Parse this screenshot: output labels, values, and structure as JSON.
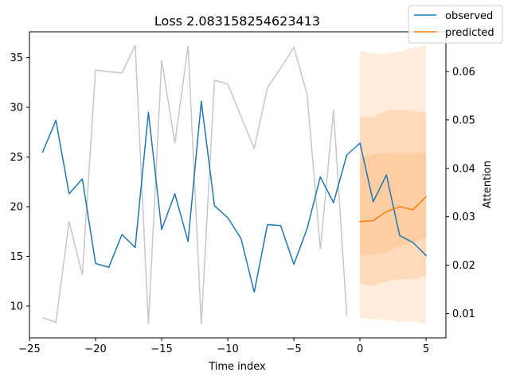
{
  "chart_data": {
    "type": "line",
    "title": "Loss 2.083158254623413",
    "xlabel": "Time index",
    "ylabel": "",
    "y2label": "Attention",
    "xlim": [
      -25,
      6.5
    ],
    "ylim": [
      6.8,
      37.6
    ],
    "y2lim": [
      0.005,
      0.0682
    ],
    "xticks": [
      -25,
      -20,
      -15,
      -10,
      -5,
      0,
      5
    ],
    "yticks": [
      10,
      15,
      20,
      25,
      30,
      35
    ],
    "y2ticks": [
      0.01,
      0.02,
      0.03,
      0.04,
      0.05,
      0.06
    ],
    "legend": {
      "placement": "top-right",
      "entries": [
        "observed",
        "predicted"
      ]
    },
    "colors": {
      "observed": "#1f77b4",
      "predicted": "#ff7f0e",
      "attention": "#c7c7c7",
      "band": "#ff7f0e"
    },
    "attention": {
      "x": [
        -24,
        -23,
        -22,
        -21,
        -20,
        -19,
        -18,
        -17,
        -16,
        -15,
        -14,
        -13,
        -12,
        -11,
        -10,
        -9,
        -8,
        -7,
        -6,
        -5,
        -4,
        -3,
        -2,
        -1
      ],
      "values": [
        0.0092,
        0.0082,
        0.029,
        0.018,
        0.0603,
        0.06,
        0.0597,
        0.0654,
        0.0078,
        0.0623,
        0.0452,
        0.0653,
        0.0078,
        0.0582,
        0.0574,
        0.0507,
        0.0441,
        0.0567,
        0.0607,
        0.065,
        0.0553,
        0.0233,
        0.0521,
        0.0095
      ]
    },
    "series": [
      {
        "name": "observed",
        "x": [
          -24,
          -23,
          -22,
          -21,
          -20,
          -19,
          -18,
          -17,
          -16,
          -15,
          -14,
          -13,
          -12,
          -11,
          -10,
          -9,
          -8,
          -7,
          -6,
          -5,
          -4,
          -3,
          -2,
          -1,
          0,
          1,
          2,
          3,
          4,
          5
        ],
        "values": [
          25.5,
          28.7,
          21.3,
          22.8,
          14.3,
          13.9,
          17.2,
          15.9,
          29.5,
          17.7,
          21.3,
          16.5,
          30.6,
          20.1,
          18.9,
          16.8,
          11.4,
          18.2,
          18.1,
          14.2,
          17.8,
          23.0,
          20.4,
          25.2,
          26.4,
          20.5,
          23.2,
          17.1,
          16.4,
          15.1
        ]
      },
      {
        "name": "predicted",
        "x": [
          0,
          1,
          2,
          3,
          4,
          5
        ],
        "values": [
          18.5,
          18.6,
          19.5,
          20.0,
          19.7,
          21.0
        ]
      }
    ],
    "quantile_bands": [
      {
        "x": [
          0,
          1,
          2,
          3,
          4,
          5
        ],
        "lower": [
          8.8,
          8.7,
          8.6,
          8.4,
          8.5,
          8.2
        ],
        "upper": [
          35.7,
          35.4,
          35.4,
          35.6,
          36.0,
          36.2
        ]
      },
      {
        "x": [
          0,
          1,
          2,
          3,
          4,
          5
        ],
        "lower": [
          12.3,
          12.0,
          12.5,
          12.7,
          12.7,
          13.0
        ],
        "upper": [
          29.0,
          29.0,
          29.7,
          29.8,
          29.6,
          29.5
        ]
      },
      {
        "x": [
          0,
          1,
          2,
          3,
          4,
          5
        ],
        "lower": [
          15.1,
          15.2,
          15.4,
          16.1,
          16.4,
          16.9
        ],
        "upper": [
          24.8,
          25.3,
          25.4,
          25.4,
          25.4,
          25.4
        ]
      }
    ]
  }
}
